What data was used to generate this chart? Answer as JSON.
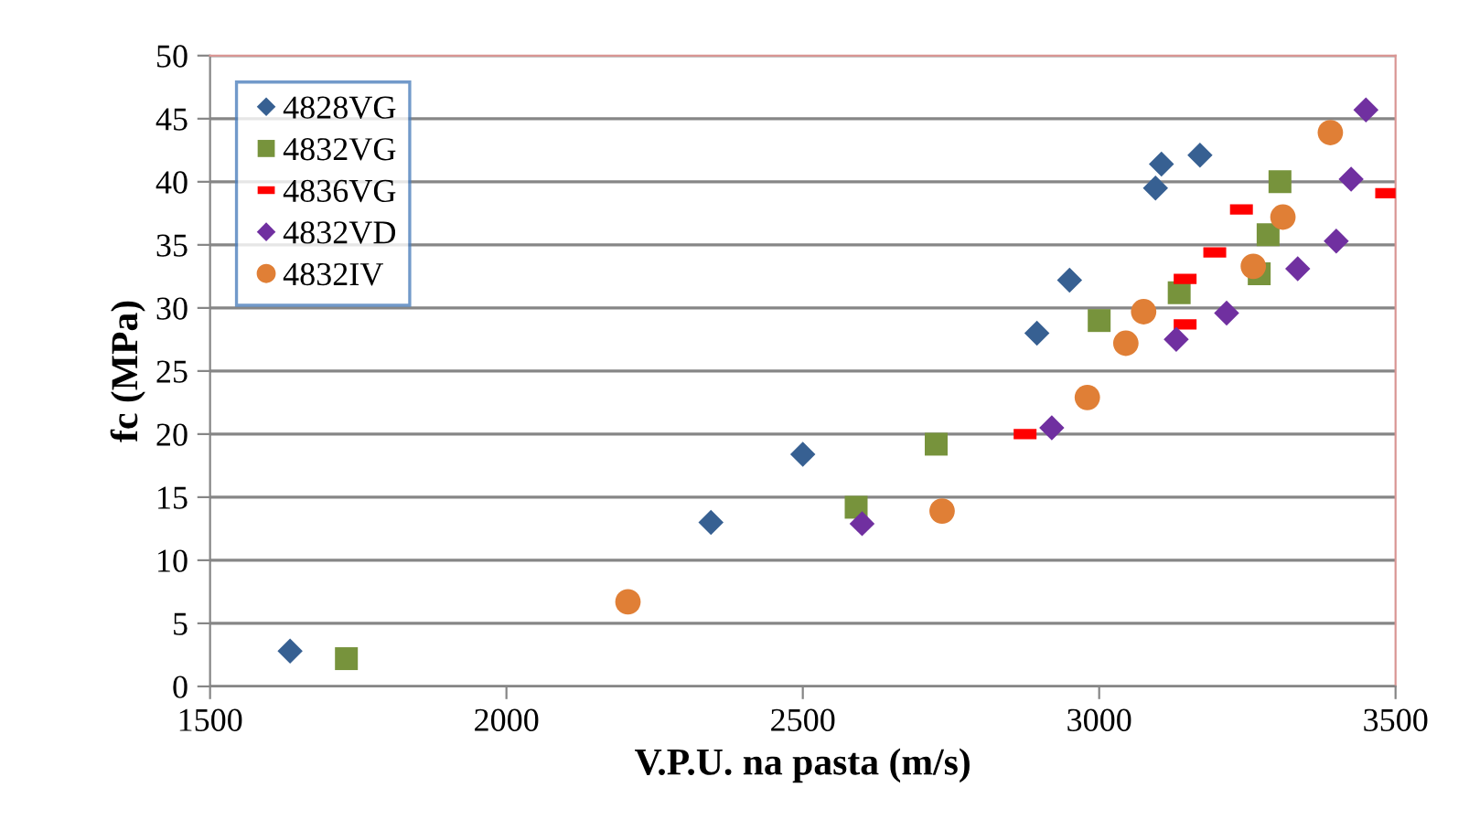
{
  "chart_data": {
    "type": "scatter",
    "xlabel": "V.P.U. na pasta (m/s)",
    "ylabel": "fc (MPa)",
    "xlim": [
      1500,
      3500
    ],
    "xticks": [
      1500,
      2000,
      2500,
      3000,
      3500
    ],
    "ylim": [
      0,
      50
    ],
    "yticks": [
      0,
      5,
      10,
      15,
      20,
      25,
      30,
      35,
      40,
      45,
      50
    ],
    "grid": "y",
    "legend": "top left",
    "series": [
      {
        "name": "4828VG",
        "color": "#376092",
        "marker": "diamond",
        "x": [
          1635,
          2345,
          2500,
          2895,
          2950,
          3095,
          3105,
          3170
        ],
        "values": [
          2.8,
          13.0,
          18.4,
          28.0,
          32.2,
          39.5,
          41.4,
          42.1
        ]
      },
      {
        "name": "4832VG",
        "color": "#77933c",
        "marker": "square",
        "x": [
          1730,
          2590,
          2725,
          3000,
          3135,
          3270,
          3285,
          3305
        ],
        "values": [
          2.2,
          14.2,
          19.2,
          29.0,
          31.2,
          32.7,
          35.8,
          40.0
        ]
      },
      {
        "name": "4836VG",
        "color": "#ff0000",
        "x": [
          2875,
          3145,
          3145,
          3195,
          3240,
          3485
        ],
        "values": [
          20.0,
          28.7,
          32.3,
          34.4,
          37.8,
          39.1
        ]
      },
      {
        "name": "4832VD",
        "color": "#7030a0",
        "marker": "diamond",
        "x": [
          2600,
          2920,
          3130,
          3215,
          3335,
          3400,
          3425,
          3450
        ],
        "values": [
          12.9,
          20.5,
          27.5,
          29.6,
          33.1,
          35.3,
          40.2,
          45.7
        ]
      },
      {
        "name": "4832IV",
        "color": "#e07f36",
        "marker": "circle",
        "x": [
          2205,
          2735,
          2980,
          3045,
          3075,
          3260,
          3310,
          3390
        ],
        "values": [
          6.7,
          13.9,
          22.9,
          27.2,
          29.7,
          33.3,
          37.2,
          43.9
        ]
      }
    ]
  }
}
